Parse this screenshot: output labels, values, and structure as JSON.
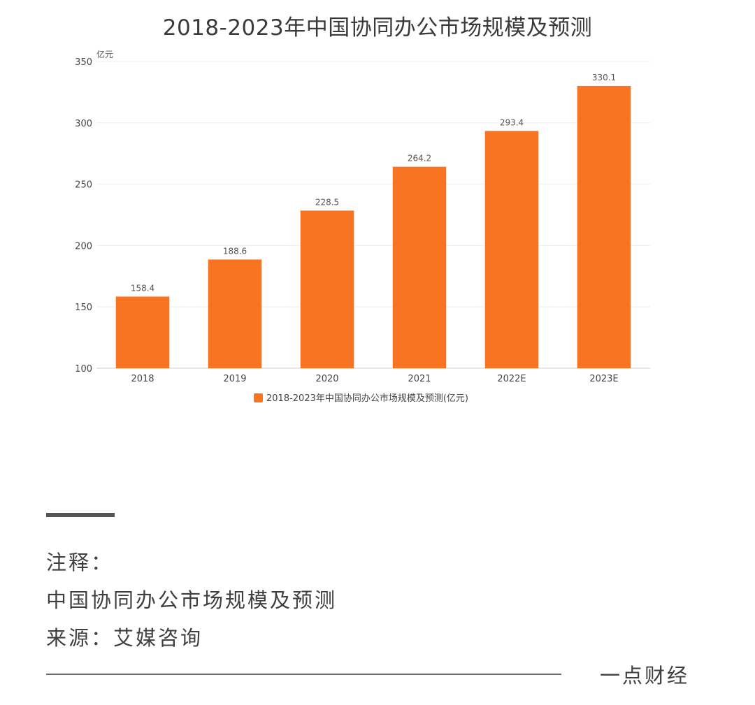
{
  "chart_data": {
    "type": "bar",
    "title": "2018-2023年中国协同办公市场规模及预测",
    "unit_label": "亿元",
    "categories": [
      "2018",
      "2019",
      "2020",
      "2021",
      "2022E",
      "2023E"
    ],
    "series": [
      {
        "name": "2018-2023年中国协同办公市场规模及预测(亿元)",
        "values": [
          158.4,
          188.6,
          228.5,
          264.2,
          293.4,
          330.1
        ],
        "color": "#F97420"
      }
    ],
    "ylim": [
      100,
      350
    ],
    "yticks": [
      100,
      150,
      200,
      250,
      300,
      350
    ],
    "grid": true,
    "legend_position": "bottom"
  },
  "notes": {
    "heading": "注释：",
    "line1": "中国协同办公市场规模及预测",
    "source": "来源：艾媒咨询"
  },
  "footer": {
    "brand": "一点财经"
  }
}
